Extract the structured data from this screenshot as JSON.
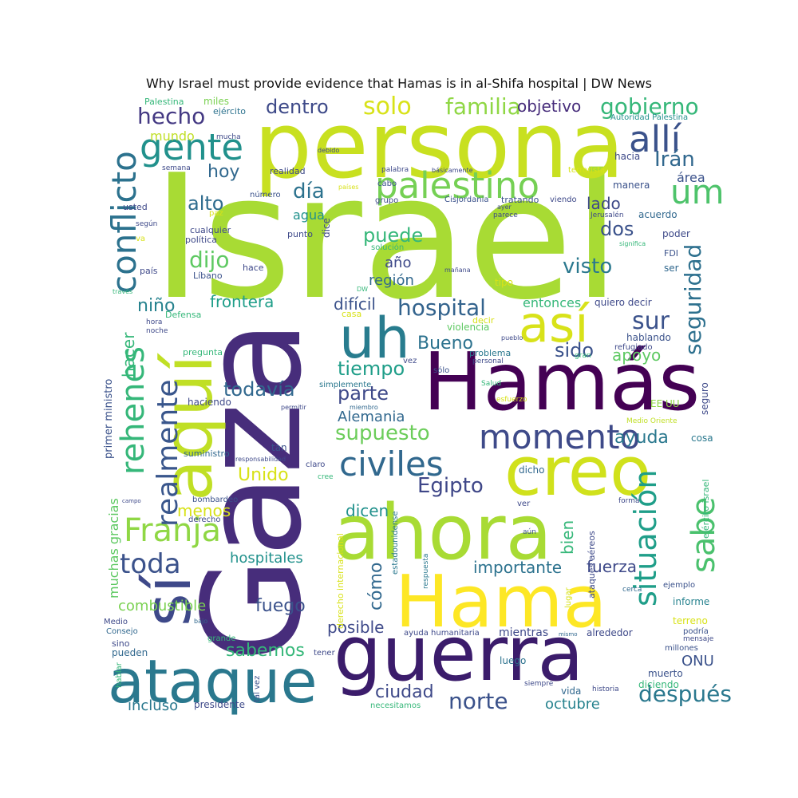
{
  "title": "Why Israel must provide evidence that Hamas is in al-Shifa hospital | DW News",
  "words": [
    {
      "text": "Israel",
      "color": "#a8db34"
    },
    {
      "text": "persona",
      "color": "#c8e020"
    },
    {
      "text": "Gaza",
      "color": "#472d7b"
    },
    {
      "text": "Hamás",
      "color": "#440154"
    },
    {
      "text": "ahora",
      "color": "#a8db34"
    },
    {
      "text": "guerra",
      "color": "#3b1c6b"
    },
    {
      "text": "Hama",
      "color": "#fde725"
    },
    {
      "text": "creo",
      "color": "#d0e11c"
    },
    {
      "text": "ataque",
      "color": "#2a788e"
    },
    {
      "text": "aquí",
      "color": "#c0df25"
    },
    {
      "text": "sí",
      "color": "#3e4989"
    },
    {
      "text": "así",
      "color": "#d8e219"
    },
    {
      "text": "uh",
      "color": "#287c8e"
    },
    {
      "text": "palestino",
      "color": "#75d054"
    },
    {
      "text": "gente",
      "color": "#21918c"
    },
    {
      "text": "allí",
      "color": "#3b528b"
    },
    {
      "text": "um",
      "color": "#4ec36b"
    },
    {
      "text": "conflicto",
      "color": "#2c728e"
    },
    {
      "text": "civiles",
      "color": "#31688e"
    },
    {
      "text": "momento",
      "color": "#3e4a89"
    },
    {
      "text": "Franja",
      "color": "#8fd744"
    },
    {
      "text": "rehenes",
      "color": "#35b779"
    },
    {
      "text": "realmente",
      "color": "#39568c"
    },
    {
      "text": "situación",
      "color": "#1f9e89"
    },
    {
      "text": "sabe",
      "color": "#4ac16d"
    },
    {
      "text": "seguridad",
      "color": "#2d708e"
    },
    {
      "text": "sur",
      "color": "#3b528b"
    },
    {
      "text": "hospital",
      "color": "#33638d"
    },
    {
      "text": "supuesto",
      "color": "#6ccd5a"
    },
    {
      "text": "Egipto",
      "color": "#3f4788"
    },
    {
      "text": "dijo",
      "color": "#5ec962"
    },
    {
      "text": "toda",
      "color": "#3b528b"
    },
    {
      "text": "después",
      "color": "#2a788e"
    },
    {
      "text": "norte",
      "color": "#3b528b"
    },
    {
      "text": "ciudad",
      "color": "#3e4989"
    },
    {
      "text": "solo",
      "color": "#d8e219"
    },
    {
      "text": "familia",
      "color": "#8fd744"
    },
    {
      "text": "gobierno",
      "color": "#35b779"
    },
    {
      "text": "hecho",
      "color": "#443983"
    },
    {
      "text": "dentro",
      "color": "#3e4a89"
    },
    {
      "text": "objetivo",
      "color": "#472d7b"
    },
    {
      "text": "Irán",
      "color": "#31688e"
    },
    {
      "text": "día",
      "color": "#2c728e"
    },
    {
      "text": "alto",
      "color": "#2f6c8e"
    },
    {
      "text": "hoy",
      "color": "#31688e"
    },
    {
      "text": "puede",
      "color": "#35b779"
    },
    {
      "text": "dos",
      "color": "#3b528b"
    },
    {
      "text": "visto",
      "color": "#2a788e"
    },
    {
      "text": "lado",
      "color": "#3e4989"
    },
    {
      "text": "niño",
      "color": "#26828e"
    },
    {
      "text": "frontera",
      "color": "#1f9e89"
    },
    {
      "text": "difícil",
      "color": "#3b528b"
    },
    {
      "text": "todavía",
      "color": "#31688e"
    },
    {
      "text": "tiempo",
      "color": "#1f9e89"
    },
    {
      "text": "parte",
      "color": "#3e4989"
    },
    {
      "text": "Bueno",
      "color": "#2c728e"
    },
    {
      "text": "sido",
      "color": "#3b528b"
    },
    {
      "text": "apoyo",
      "color": "#5ec962"
    },
    {
      "text": "Alemania",
      "color": "#31688e"
    },
    {
      "text": "ayuda",
      "color": "#2a788e"
    },
    {
      "text": "Unido",
      "color": "#d8e219"
    },
    {
      "text": "dicen",
      "color": "#21918c"
    },
    {
      "text": "menos",
      "color": "#d8e219"
    },
    {
      "text": "hacer",
      "color": "#35b779"
    },
    {
      "text": "hospitales",
      "color": "#21918c"
    },
    {
      "text": "cómo",
      "color": "#31688e"
    },
    {
      "text": "bien",
      "color": "#35b779"
    },
    {
      "text": "importante",
      "color": "#2c728e"
    },
    {
      "text": "fuerza",
      "color": "#3e4989"
    },
    {
      "text": "combustible",
      "color": "#7ad151"
    },
    {
      "text": "fuego",
      "color": "#3b528b"
    },
    {
      "text": "posible",
      "color": "#3e4989"
    },
    {
      "text": "sabemos",
      "color": "#35b779"
    },
    {
      "text": "ONU",
      "color": "#3b528b"
    },
    {
      "text": "incluso",
      "color": "#2a788e"
    },
    {
      "text": "octubre",
      "color": "#26828e"
    },
    {
      "text": "año",
      "color": "#3e4989"
    },
    {
      "text": "región",
      "color": "#31688e"
    },
    {
      "text": "entonces",
      "color": "#35b779"
    },
    {
      "text": "agua",
      "color": "#21918c"
    },
    {
      "text": "mundo",
      "color": "#c0df25"
    },
    {
      "text": "muchas gracias",
      "color": "#5ec962"
    },
    {
      "text": "primer ministro",
      "color": "#3b528b"
    },
    {
      "text": "Palestina",
      "color": "#35b779"
    },
    {
      "text": "miles",
      "color": "#7ad151"
    },
    {
      "text": "ejército",
      "color": "#2c728e"
    },
    {
      "text": "Autoridad Palestina",
      "color": "#21918c"
    },
    {
      "text": "terrorista",
      "color": "#d8e219"
    },
    {
      "text": "área",
      "color": "#3b528b"
    },
    {
      "text": "hacia",
      "color": "#3e4989"
    },
    {
      "text": "manera",
      "color": "#3b528b"
    },
    {
      "text": "acuerdo",
      "color": "#31688e"
    },
    {
      "text": "poder",
      "color": "#3e4989"
    },
    {
      "text": "FDI",
      "color": "#3b528b"
    },
    {
      "text": "ser",
      "color": "#31688e"
    },
    {
      "text": "tipo",
      "color": "#d8e219"
    },
    {
      "text": "quiero decir",
      "color": "#3e4989"
    },
    {
      "text": "hablando",
      "color": "#3b528b"
    },
    {
      "text": "refugiado",
      "color": "#3e4989"
    },
    {
      "text": "seguro",
      "color": "#3e4989"
    },
    {
      "text": "EE UU",
      "color": "#8fd744"
    },
    {
      "text": "Medio Oriente",
      "color": "#c0df25"
    },
    {
      "text": "cosa",
      "color": "#2a788e"
    },
    {
      "text": "ejército israel",
      "color": "#35b779"
    },
    {
      "text": "ejemplo",
      "color": "#3b528b"
    },
    {
      "text": "cerca",
      "color": "#31688e"
    },
    {
      "text": "informe",
      "color": "#26828e"
    },
    {
      "text": "terreno",
      "color": "#d8e219"
    },
    {
      "text": "podría",
      "color": "#3b528b"
    },
    {
      "text": "mensaje",
      "color": "#3e4989"
    },
    {
      "text": "millones",
      "color": "#3b528b"
    },
    {
      "text": "muerto",
      "color": "#3b528b"
    },
    {
      "text": "diciendo",
      "color": "#35b779"
    },
    {
      "text": "historia",
      "color": "#3e4989"
    },
    {
      "text": "siempre",
      "color": "#3e4989"
    },
    {
      "text": "vida",
      "color": "#31688e"
    },
    {
      "text": "luego",
      "color": "#2c728e"
    },
    {
      "text": "mientras",
      "color": "#3e4989"
    },
    {
      "text": "alrededor",
      "color": "#3e4989"
    },
    {
      "text": "mismo",
      "color": "#31688e"
    },
    {
      "text": "ayuda humanitaria",
      "color": "#3e4989"
    },
    {
      "text": "necesitamos",
      "color": "#35b779"
    },
    {
      "text": "tal vez",
      "color": "#3b528b"
    },
    {
      "text": "presidente",
      "color": "#3e4989"
    },
    {
      "text": "tener",
      "color": "#3e4989"
    },
    {
      "text": "hablar",
      "color": "#35b779"
    },
    {
      "text": "pueden",
      "color": "#31688e"
    },
    {
      "text": "sino",
      "color": "#3e4989"
    },
    {
      "text": "Consejo",
      "color": "#31688e"
    },
    {
      "text": "Medio",
      "color": "#3e4989"
    },
    {
      "text": "bajo",
      "color": "#31688e"
    },
    {
      "text": "grande",
      "color": "#35b779"
    },
    {
      "text": "derecho internacional",
      "color": "#d8e219"
    },
    {
      "text": "estadounidense",
      "color": "#2a788e"
    },
    {
      "text": "respuesta",
      "color": "#2a788e"
    },
    {
      "text": "lugar",
      "color": "#d8e219"
    },
    {
      "text": "ataques aéreos",
      "color": "#3e4989"
    },
    {
      "text": "aún",
      "color": "#3b528b"
    },
    {
      "text": "ver",
      "color": "#3e4989"
    },
    {
      "text": "forma",
      "color": "#3e4989"
    },
    {
      "text": "dicho",
      "color": "#31688e"
    },
    {
      "text": "claro",
      "color": "#3e4989"
    },
    {
      "text": "cree",
      "color": "#35b779"
    },
    {
      "text": "responsabilidad",
      "color": "#3e4989"
    },
    {
      "text": "tan",
      "color": "#3b528b"
    },
    {
      "text": "suministro",
      "color": "#31688e"
    },
    {
      "text": "permitir",
      "color": "#3e4989"
    },
    {
      "text": "miembro",
      "color": "#31688e"
    },
    {
      "text": "haciendo",
      "color": "#3e4989"
    },
    {
      "text": "simplemente",
      "color": "#2a788e"
    },
    {
      "text": "vez",
      "color": "#3e4989"
    },
    {
      "text": "sólo",
      "color": "#3b528b"
    },
    {
      "text": "Salud",
      "color": "#35b779"
    },
    {
      "text": "esfuerzo",
      "color": "#d8e219"
    },
    {
      "text": "problema",
      "color": "#2a788e"
    },
    {
      "text": "personal",
      "color": "#3e4989"
    },
    {
      "text": "gran",
      "color": "#35b779"
    },
    {
      "text": "pueblo",
      "color": "#3e4989"
    },
    {
      "text": "decir",
      "color": "#d8e219"
    },
    {
      "text": "violencia",
      "color": "#5ec962"
    },
    {
      "text": "casa",
      "color": "#d8e219"
    },
    {
      "text": "Defensa",
      "color": "#35b779"
    },
    {
      "text": "noche",
      "color": "#3e4989"
    },
    {
      "text": "hora",
      "color": "#3e4989"
    },
    {
      "text": "pregunta",
      "color": "#35b779"
    },
    {
      "text": "DW",
      "color": "#35b779"
    },
    {
      "text": "mañana",
      "color": "#3e4989"
    },
    {
      "text": "significa",
      "color": "#35b779"
    },
    {
      "text": "parece",
      "color": "#3e4989"
    },
    {
      "text": "ayer",
      "color": "#3e4989"
    },
    {
      "text": "Jerusalén",
      "color": "#3e4989"
    },
    {
      "text": "viendo",
      "color": "#3e4989"
    },
    {
      "text": "tratando",
      "color": "#3b528b"
    },
    {
      "text": "Cisjordania",
      "color": "#3b528b"
    },
    {
      "text": "países",
      "color": "#d8e219"
    },
    {
      "text": "básicamente",
      "color": "#3e4989"
    },
    {
      "text": "palabra",
      "color": "#3e4989"
    },
    {
      "text": "debido",
      "color": "#3e4989"
    },
    {
      "text": "cabo",
      "color": "#3b528b"
    },
    {
      "text": "grupo",
      "color": "#3e4989"
    },
    {
      "text": "solución",
      "color": "#35b779"
    },
    {
      "text": "número",
      "color": "#3b528b"
    },
    {
      "text": "realidad",
      "color": "#3e4989"
    },
    {
      "text": "dice",
      "color": "#3e4989"
    },
    {
      "text": "punto",
      "color": "#3e4989"
    },
    {
      "text": "paz",
      "color": "#d8e219"
    },
    {
      "text": "cualquier",
      "color": "#3e4989"
    },
    {
      "text": "política",
      "color": "#3e4989"
    },
    {
      "text": "hace",
      "color": "#3e4989"
    },
    {
      "text": "Líbano",
      "color": "#3b528b"
    },
    {
      "text": "país",
      "color": "#3e4989"
    },
    {
      "text": "través",
      "color": "#35b779"
    },
    {
      "text": "usted",
      "color": "#3e4989"
    },
    {
      "text": "según",
      "color": "#3e4989"
    },
    {
      "text": "va",
      "color": "#d8e219"
    },
    {
      "text": "semana",
      "color": "#3e4989"
    },
    {
      "text": "mucha",
      "color": "#3e4989"
    },
    {
      "text": "campo",
      "color": "#3e4989"
    },
    {
      "text": "bombardeo",
      "color": "#3b528b"
    },
    {
      "text": "derecho",
      "color": "#3e4989"
    }
  ]
}
